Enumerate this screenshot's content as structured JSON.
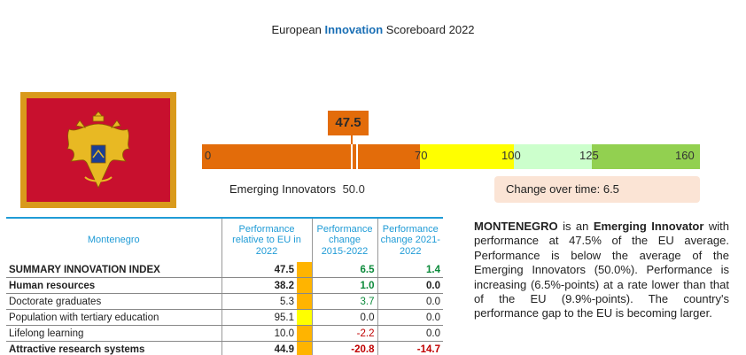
{
  "title": {
    "prefix": "European",
    "highlight": "Innovation",
    "suffix": "Scoreboard 2022"
  },
  "colors": {
    "orange": "#e36c0a",
    "yellow": "#ffff00",
    "pale_green": "#ccffcc",
    "green": "#92d050",
    "accent_blue": "#1f9bd6",
    "positive": "#0b8a3a",
    "negative": "#c00000"
  },
  "flag": {
    "country": "Montenegro",
    "icon": "coat-of-arms-icon"
  },
  "score": {
    "value": "47.5",
    "numeric": 47.5
  },
  "scale": {
    "labels": [
      "0",
      "70",
      "100",
      "125",
      "160"
    ],
    "thresholds": [
      0,
      70,
      100,
      125,
      160
    ]
  },
  "group": {
    "label": "Emerging Innovators",
    "value": "50.0"
  },
  "change": {
    "text": "Change over time: 6.5"
  },
  "table": {
    "country": "Montenegro",
    "headers": [
      "Performance relative to EU in 2022",
      "Performance change 2015-2022",
      "Performance change 2021-2022"
    ],
    "rows": [
      {
        "name": "SUMMARY INNOVATION INDEX",
        "bold": true,
        "rel": "47.5",
        "color": "#ffb400",
        "c1": "6.5",
        "c1s": "pos",
        "c2": "1.4",
        "c2s": "pos"
      },
      {
        "name": "Human resources",
        "bold": true,
        "rel": "38.2",
        "color": "#ffb400",
        "c1": "1.0",
        "c1s": "pos",
        "c2": "0.0",
        "c2s": "zero"
      },
      {
        "name": "Doctorate graduates",
        "bold": false,
        "rel": "5.3",
        "color": "#ffb400",
        "c1": "3.7",
        "c1s": "pos",
        "c2": "0.0",
        "c2s": "zero"
      },
      {
        "name": "Population with tertiary education",
        "bold": false,
        "rel": "95.1",
        "color": "#ffff00",
        "c1": "0.0",
        "c1s": "zero",
        "c2": "0.0",
        "c2s": "zero"
      },
      {
        "name": "Lifelong learning",
        "bold": false,
        "rel": "10.0",
        "color": "#ffb400",
        "c1": "-2.2",
        "c1s": "neg",
        "c2": "0.0",
        "c2s": "zero"
      },
      {
        "name": "Attractive research systems",
        "bold": true,
        "rel": "44.9",
        "color": "#ffb400",
        "c1": "-20.8",
        "c1s": "neg",
        "c2": "-14.7",
        "c2s": "neg"
      }
    ]
  },
  "description": {
    "country": "MONTENEGRO",
    "part1": " is an ",
    "group": "Emerging Innovator",
    "part2": " with performance at 47.5% of the EU average. Performance is below the average of the Emerging Innovators (50.0%). Performance is increasing (6.5%-points) at a rate lower than that of the EU (9.9%-points). The country's performance gap to the EU is becoming larger."
  }
}
